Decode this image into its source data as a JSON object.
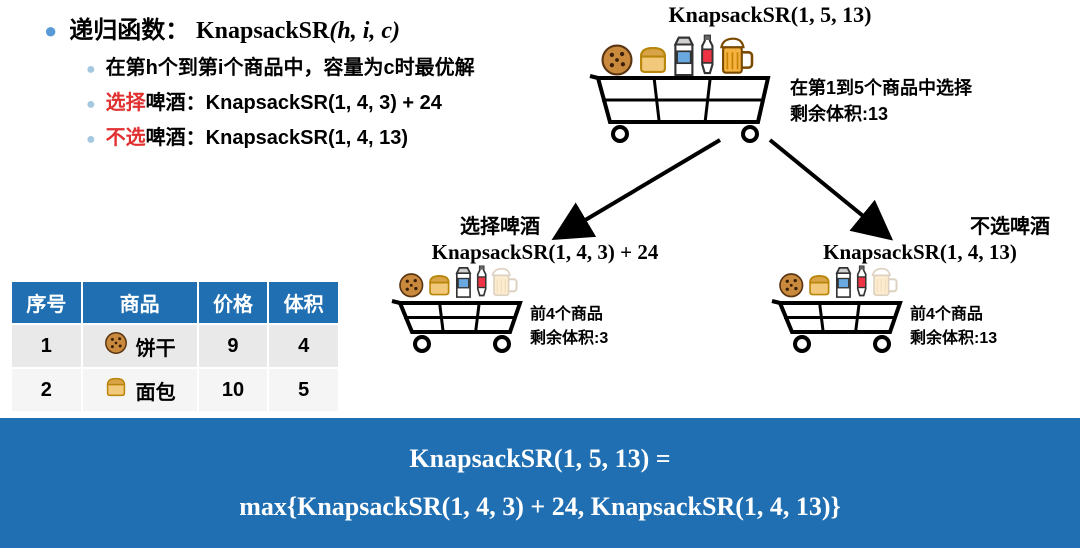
{
  "bullets": {
    "title_prefix": "递归函数：",
    "title_fn": "KnapsackSR",
    "title_args": "(h, i, c)",
    "sub1": "在第h个到第i个商品中，容量为c时最优解",
    "sub2_red": "选择",
    "sub2_rest": "啤酒：KnapsackSR(1, 4, 3) + 24",
    "sub3_red": "不选",
    "sub3_rest": "啤酒：KnapsackSR(1, 4, 13)"
  },
  "tree": {
    "root": {
      "title": "KnapsackSR(1, 5, 13)",
      "sub_line1": "在第1到5个商品中选择",
      "sub_line2": "剩余体积:13",
      "items_faded": []
    },
    "left": {
      "choice_label": "选择啤酒",
      "title": "KnapsackSR(1, 4, 3) + 24",
      "sub_line1": "前4个商品",
      "sub_line2": "剩余体积:3",
      "items_faded": [
        4
      ]
    },
    "right": {
      "choice_label": "不选啤酒",
      "title": "KnapsackSR(1, 4, 13)",
      "sub_line1": "前4个商品",
      "sub_line2": "剩余体积:13",
      "items_faded": [
        4
      ]
    }
  },
  "table": {
    "headers": [
      "序号",
      "商品",
      "价格",
      "体积"
    ],
    "rows": [
      {
        "idx": "1",
        "icon": "cookie",
        "name": "饼干",
        "price": "9",
        "volume": "4"
      },
      {
        "idx": "2",
        "icon": "bread",
        "name": "面包",
        "price": "10",
        "volume": "5"
      }
    ]
  },
  "banner": {
    "line1": "KnapsackSR(1, 5, 13) =",
    "line2": "max{KnapsackSR(1, 4, 3) + 24, KnapsackSR(1, 4, 13)}"
  },
  "icons": {
    "order": [
      "cookie",
      "bread",
      "milk",
      "soda",
      "beer"
    ]
  },
  "colors": {
    "accent_blue": "#5b9bd5",
    "header_blue": "#1f6fb2",
    "red": "#e03030",
    "row_alt1": "#e9e9e9",
    "row_alt2": "#f5f5f5"
  }
}
